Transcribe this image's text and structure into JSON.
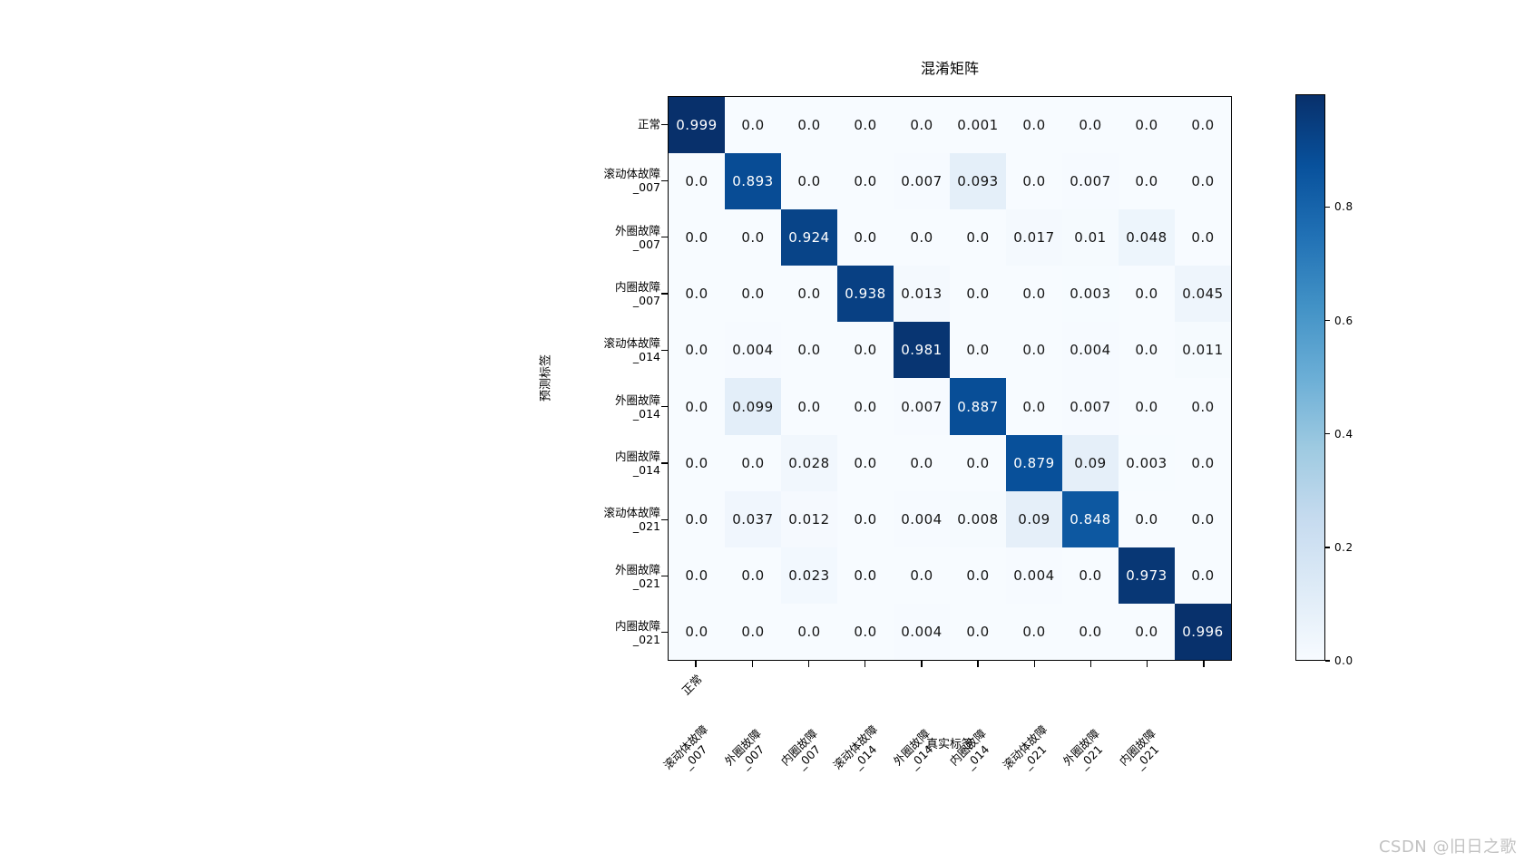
{
  "figure": {
    "title": "混淆矩阵",
    "xlabel": "真实标签",
    "ylabel": "预测标签"
  },
  "watermark": "CSDN @旧日之歌",
  "colors": {
    "background": "#ffffff",
    "axis": "#000000",
    "cell_text_dark": "#141414",
    "cell_text_light": "#ffffff",
    "watermark": "#c2c2c2",
    "colormap_max": "#08306b",
    "colormap_min": "#f7fbff"
  },
  "chart_data": {
    "type": "heatmap",
    "title": "混淆矩阵",
    "xlabel": "真实标签",
    "ylabel": "预测标签",
    "colormap": "Blues",
    "vmin": 0.0,
    "vmax": 0.999,
    "grid": false,
    "legend_position": "right-colorbar",
    "categories": [
      "正常",
      "滚动体故障_007",
      "外圈故障_007",
      "内圈故障_007",
      "滚动体故障_014",
      "外圈故障_014",
      "内圈故障_014",
      "滚动体故障_021",
      "外圈故障_021",
      "内圈故障_021"
    ],
    "row_axis": "预测标签 (rows, top to bottom)",
    "col_axis": "真实标签 (columns, left to right)",
    "matrix": [
      [
        "0.999",
        "0.0",
        "0.0",
        "0.0",
        "0.0",
        "0.001",
        "0.0",
        "0.0",
        "0.0",
        "0.0"
      ],
      [
        "0.0",
        "0.893",
        "0.0",
        "0.0",
        "0.007",
        "0.093",
        "0.0",
        "0.007",
        "0.0",
        "0.0"
      ],
      [
        "0.0",
        "0.0",
        "0.924",
        "0.0",
        "0.0",
        "0.0",
        "0.017",
        "0.01",
        "0.048",
        "0.0"
      ],
      [
        "0.0",
        "0.0",
        "0.0",
        "0.938",
        "0.013",
        "0.0",
        "0.0",
        "0.003",
        "0.0",
        "0.045"
      ],
      [
        "0.0",
        "0.004",
        "0.0",
        "0.0",
        "0.981",
        "0.0",
        "0.0",
        "0.004",
        "0.0",
        "0.011"
      ],
      [
        "0.0",
        "0.099",
        "0.0",
        "0.0",
        "0.007",
        "0.887",
        "0.0",
        "0.007",
        "0.0",
        "0.0"
      ],
      [
        "0.0",
        "0.0",
        "0.028",
        "0.0",
        "0.0",
        "0.0",
        "0.879",
        "0.09",
        "0.003",
        "0.0"
      ],
      [
        "0.0",
        "0.037",
        "0.012",
        "0.0",
        "0.004",
        "0.008",
        "0.09",
        "0.848",
        "0.0",
        "0.0"
      ],
      [
        "0.0",
        "0.0",
        "0.023",
        "0.0",
        "0.0",
        "0.0",
        "0.004",
        "0.0",
        "0.973",
        "0.0"
      ],
      [
        "0.0",
        "0.0",
        "0.0",
        "0.0",
        "0.004",
        "0.0",
        "0.0",
        "0.0",
        "0.0",
        "0.996"
      ]
    ],
    "colorbar_ticks": [
      {
        "label": "0.8",
        "value": 0.8
      },
      {
        "label": "0.6",
        "value": 0.6
      },
      {
        "label": "0.4",
        "value": 0.4
      },
      {
        "label": "0.2",
        "value": 0.2
      },
      {
        "label": "0.0",
        "value": 0.0
      }
    ]
  }
}
